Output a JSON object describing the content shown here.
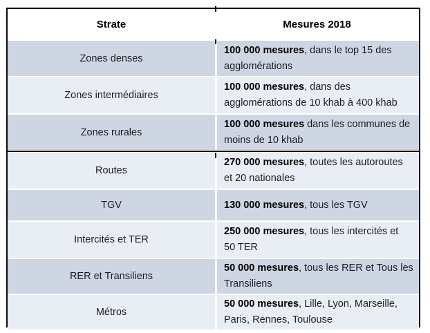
{
  "table": {
    "headers": {
      "strate": "Strate",
      "mesures": "Mesures 2018"
    },
    "rows": [
      {
        "strate": "Zones denses",
        "bold": "100 000 mesures",
        "rest": ", dans le top 15 des\nagglomérations"
      },
      {
        "strate": "Zones intermédiaires",
        "bold": "100 000 mesures",
        "rest": ", dans des\nagglomérations de 10 khab à 400 khab"
      },
      {
        "strate": "Zones rurales",
        "bold": "100 000 mesures",
        "rest": " dans les communes de\nmoins de 10 khab"
      },
      {
        "strate": "Routes",
        "bold": "270 000 mesures",
        "rest": ", toutes les autoroutes\net 20 nationales"
      },
      {
        "strate": "TGV",
        "bold": "130 000 mesures",
        "rest": ", tous les TGV"
      },
      {
        "strate": "Intercités et TER",
        "bold": "250 000 mesures",
        "rest": ", tous les intercités et\n50 TER"
      },
      {
        "strate": "RER et Transiliens",
        "bold": "50 000 mesures",
        "rest": ", tous les RER et Tous les\nTransiliens"
      },
      {
        "strate": "Métros",
        "bold": "50 000 mesures",
        "rest": ", Lille, Lyon, Marseille,\nParis, Rennes, Toulouse"
      }
    ],
    "colors": {
      "band_dark": "#ced5e3",
      "band_light": "#e9edf4",
      "border": "#000000",
      "text": "#1b1d21"
    }
  }
}
